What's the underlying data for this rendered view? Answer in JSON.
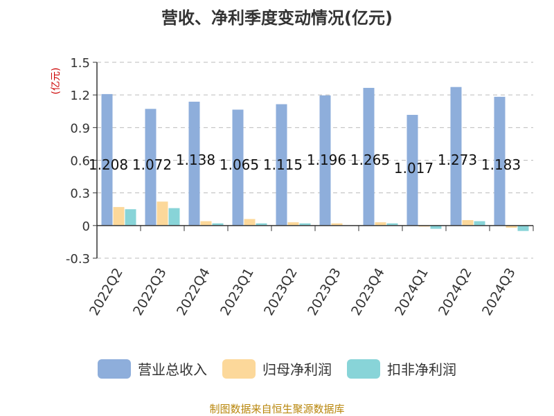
{
  "chart_data": {
    "type": "bar",
    "title": "营收、净利季度变动情况(亿元)",
    "ylabel": "(亿元)",
    "categories": [
      "2022Q2",
      "2022Q3",
      "2022Q4",
      "2023Q1",
      "2023Q2",
      "2023Q3",
      "2023Q4",
      "2024Q1",
      "2024Q2",
      "2024Q3"
    ],
    "yticks": [
      "1.5",
      "1.2",
      "0.9",
      "0.6",
      "0.3",
      "0",
      "-0.3"
    ],
    "ylim": [
      -0.3,
      1.5
    ],
    "grid": true,
    "legend_position": "bottom",
    "series": [
      {
        "name": "营业总收入",
        "color": "#8eaedb",
        "values": [
          1.208,
          1.072,
          1.138,
          1.065,
          1.115,
          1.196,
          1.265,
          1.017,
          1.273,
          1.183
        ],
        "labels": [
          "1.208",
          "1.072",
          "1.138",
          "1.065",
          "1.115",
          "1.196",
          "1.265",
          "1.017",
          "1.273",
          "1.183"
        ]
      },
      {
        "name": "归母净利润",
        "color": "#fcd89a",
        "values": [
          0.17,
          0.22,
          0.04,
          0.06,
          0.03,
          0.02,
          0.03,
          -0.01,
          0.05,
          -0.02
        ]
      },
      {
        "name": "扣非净利润",
        "color": "#88d4d8",
        "values": [
          0.15,
          0.16,
          0.02,
          0.02,
          0.02,
          0.0,
          0.02,
          -0.03,
          0.04,
          -0.05
        ]
      }
    ],
    "source": "制图数据来自恒生聚源数据库"
  }
}
